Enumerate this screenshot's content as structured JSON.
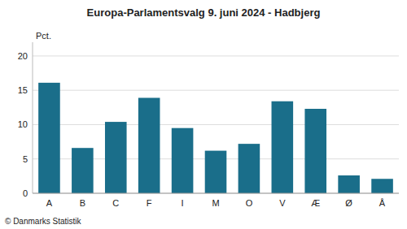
{
  "chart_data": {
    "type": "bar",
    "title": "Europa-Parlamentsvalg 9. juni 2024 - Hadbjerg",
    "y_label": "Pct.",
    "footnote": "© Danmarks Statistik",
    "categories": [
      "A",
      "B",
      "C",
      "F",
      "I",
      "M",
      "O",
      "V",
      "Æ",
      "Ø",
      "Å"
    ],
    "values": [
      16.1,
      6.6,
      10.4,
      13.9,
      9.5,
      6.2,
      7.2,
      13.4,
      12.3,
      2.6,
      2.1
    ],
    "color": "#1a6e8a",
    "ylim": [
      0,
      22
    ],
    "yticks": [
      0,
      5,
      10,
      15,
      20
    ],
    "grid": true
  }
}
